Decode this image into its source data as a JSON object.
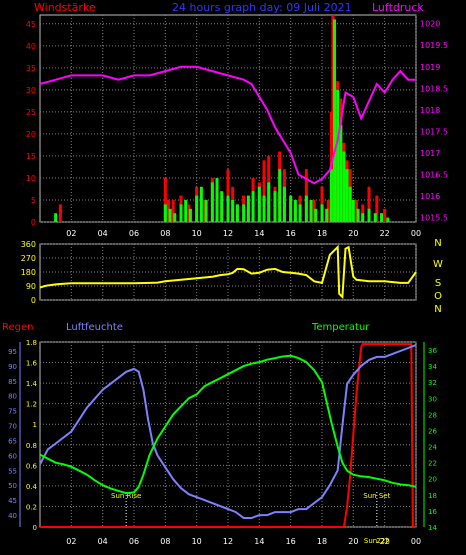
{
  "header": {
    "left_label": "Windstärke",
    "center_title": "24 hours graph day: 09 Juli 2021",
    "right_label": "Luftdruck"
  },
  "colors": {
    "background": "#000000",
    "grid": "#808080",
    "wind_gust": "#ff0000",
    "wind_avg": "#00ff00",
    "pressure": "#ff00ff",
    "direction": "#ffff00",
    "rain": "#ff0000",
    "humidity": "#8080ff",
    "temperature": "#00ff00",
    "header_blue": "#3333ff",
    "left_axis": "#ff0000",
    "right_axis": "#ff00ff",
    "bottom_left_axis": "#ffff00",
    "humidity_axis": "#8080ff",
    "temp_axis": "#00ff00",
    "time_axis": "#ffffff"
  },
  "chart_data": [
    {
      "type": "bar",
      "id": "wind_pressure",
      "title": "24 hours graph day: 09 Juli 2021",
      "ylabel": "Windstärke",
      "y2label": "Luftdruck",
      "xlim": [
        0,
        24
      ],
      "ylim": [
        0,
        47
      ],
      "y2lim": [
        1015.4,
        1020.2
      ],
      "x_ticks": [
        "02",
        "04",
        "06",
        "08",
        "10",
        "12",
        "14",
        "16",
        "18",
        "20",
        "22",
        "00"
      ],
      "y_ticks": [
        "0",
        "5",
        "10",
        "15",
        "20",
        "25",
        "30",
        "35",
        "40",
        "45"
      ],
      "y2_ticks": [
        "1015.5",
        "1016",
        "1016.5",
        "1017",
        "1017.5",
        "1018",
        "1018.5",
        "1019",
        "1019.5",
        "1020"
      ],
      "grid": true,
      "series": [
        {
          "name": "Windstärke",
          "kind": "bar",
          "color": "#ff0000",
          "x": [
            1.3,
            8.0,
            8.2,
            8.5,
            9.0,
            9.5,
            10.0,
            10.5,
            11.0,
            11.3,
            11.6,
            12.0,
            12.3,
            12.6,
            13.0,
            13.3,
            13.6,
            14.0,
            14.3,
            14.6,
            15.0,
            15.3,
            15.6,
            16.0,
            16.3,
            16.6,
            17.0,
            17.5,
            18.0,
            18.4,
            18.6,
            18.7,
            18.8,
            18.9,
            19.0,
            19.2,
            19.4,
            19.6,
            19.8,
            20.2,
            20.6,
            21.0,
            21.5,
            22.0
          ],
          "values": [
            4,
            10,
            5,
            5,
            6,
            4,
            8,
            5,
            10,
            7,
            5,
            12,
            8,
            4,
            6,
            5,
            10,
            9,
            14,
            15,
            8,
            16,
            12,
            5,
            4,
            6,
            12,
            5,
            8,
            5,
            25,
            47,
            38,
            20,
            32,
            28,
            18,
            14,
            12,
            5,
            4,
            8,
            6,
            3
          ]
        },
        {
          "name": "Wind Mittel",
          "kind": "bar",
          "color": "#00ff00",
          "x": [
            1.0,
            8.0,
            8.3,
            8.6,
            9.0,
            9.3,
            9.6,
            10.0,
            10.3,
            10.6,
            11.0,
            11.3,
            11.6,
            12.0,
            12.3,
            12.6,
            13.0,
            13.3,
            13.6,
            14.0,
            14.3,
            14.6,
            15.0,
            15.3,
            15.6,
            16.0,
            16.3,
            16.6,
            17.0,
            17.3,
            17.6,
            18.0,
            18.3,
            18.6,
            18.8,
            19.0,
            19.2,
            19.4,
            19.6,
            19.8,
            20.0,
            20.3,
            20.6,
            21.0,
            21.4,
            21.8,
            22.2
          ],
          "values": [
            2,
            4,
            3,
            2,
            4,
            5,
            3,
            6,
            8,
            5,
            9,
            10,
            7,
            6,
            5,
            4,
            4,
            6,
            7,
            8,
            6,
            9,
            7,
            12,
            8,
            6,
            5,
            4,
            6,
            5,
            3,
            4,
            3,
            12,
            46,
            30,
            22,
            16,
            12,
            8,
            5,
            3,
            2,
            3,
            2,
            2,
            1
          ]
        },
        {
          "name": "Luftdruck",
          "kind": "line",
          "axis": "right",
          "color": "#ff00ff",
          "x": [
            0,
            1,
            2,
            3,
            4,
            5,
            6,
            7,
            8,
            9,
            10,
            11,
            12,
            13,
            13.5,
            14,
            14.5,
            15,
            15.5,
            16,
            16.5,
            17,
            17.5,
            18,
            18.5,
            19,
            19.5,
            20,
            20.5,
            21,
            21.5,
            22,
            22.5,
            23,
            23.5,
            24
          ],
          "values": [
            1018.6,
            1018.7,
            1018.8,
            1018.8,
            1018.8,
            1018.7,
            1018.8,
            1018.8,
            1018.9,
            1019.0,
            1019.0,
            1018.9,
            1018.8,
            1018.7,
            1018.6,
            1018.3,
            1018.0,
            1017.6,
            1017.3,
            1017.0,
            1016.5,
            1016.4,
            1016.3,
            1016.4,
            1016.6,
            1017.3,
            1018.4,
            1018.3,
            1017.8,
            1018.2,
            1018.6,
            1018.4,
            1018.7,
            1018.9,
            1018.7,
            1018.7
          ]
        }
      ]
    },
    {
      "type": "line",
      "id": "wind_direction",
      "xlim": [
        0,
        24
      ],
      "ylim": [
        0,
        360
      ],
      "y_ticks": [
        "0",
        "90",
        "180",
        "270",
        "360"
      ],
      "compass_labels": [
        "N",
        "W",
        "S",
        "O",
        "N"
      ],
      "grid": true,
      "series": [
        {
          "name": "Windrichtung",
          "color": "#ffff00",
          "x": [
            0,
            0.3,
            0.6,
            1,
            1.5,
            2,
            3,
            4,
            5,
            6,
            7,
            7.5,
            8,
            9,
            10,
            11,
            11.5,
            12,
            12.3,
            12.6,
            13,
            13.5,
            14,
            14.5,
            15,
            15.5,
            16,
            16.5,
            17,
            17.5,
            18,
            18.5,
            18.8,
            19,
            19.1,
            19.3,
            19.5,
            19.7,
            20,
            20.2,
            21,
            22,
            23,
            23.5,
            24
          ],
          "values": [
            80,
            90,
            95,
            100,
            105,
            108,
            108,
            108,
            108,
            108,
            110,
            112,
            120,
            130,
            140,
            150,
            160,
            165,
            175,
            200,
            198,
            170,
            175,
            195,
            200,
            180,
            175,
            170,
            160,
            120,
            110,
            290,
            320,
            340,
            40,
            20,
            330,
            340,
            150,
            130,
            120,
            120,
            110,
            110,
            180
          ]
        }
      ]
    },
    {
      "type": "line",
      "id": "rain_humidity_temperature",
      "xlim": [
        0,
        24
      ],
      "x_ticks": [
        "02",
        "04",
        "06",
        "08",
        "10",
        "12",
        "14",
        "16",
        "18",
        "20",
        "22",
        "00"
      ],
      "grid": true,
      "axes": {
        "rain": {
          "label": "Regen",
          "range": [
            0,
            1.8
          ],
          "ticks": [
            "0",
            "0.2",
            "0.4",
            "0.6",
            "0.8",
            "1",
            "1.2",
            "1.4",
            "1.6",
            "1.8"
          ]
        },
        "humidity": {
          "label": "Luftfeuchte",
          "range": [
            36,
            98
          ],
          "ticks": [
            "40",
            "45",
            "50",
            "55",
            "60",
            "65",
            "70",
            "75",
            "80",
            "85",
            "90",
            "95"
          ]
        },
        "temperature": {
          "label": "Temperatur",
          "range": [
            14,
            37
          ],
          "ticks": [
            "14",
            "16",
            "18",
            "20",
            "22",
            "24",
            "26",
            "28",
            "30",
            "32",
            "34",
            "36"
          ]
        }
      },
      "annotations": [
        {
          "label": "Sun Rise",
          "x": 5.5
        },
        {
          "label": "Sun Set",
          "x": 21.5
        },
        {
          "label": "Sun",
          "x": 21.1
        },
        {
          "label": "22h",
          "x": 21.9
        }
      ],
      "series": [
        {
          "name": "Regen",
          "axis": "rain",
          "color": "#ff0000",
          "x": [
            0,
            19.4,
            19.5,
            19.6,
            19.8,
            20.0,
            20.2,
            20.4,
            20.5,
            20.6,
            22.0,
            23.0,
            23.7,
            23.8,
            24
          ],
          "values": [
            0,
            0,
            0.1,
            0.2,
            0.5,
            0.9,
            1.3,
            1.6,
            1.75,
            1.78,
            1.78,
            1.78,
            1.78,
            0,
            0
          ]
        },
        {
          "name": "Luftfeuchte",
          "axis": "humidity",
          "color": "#8080ff",
          "x": [
            0,
            0.5,
            1,
            1.5,
            2,
            2.5,
            3,
            3.5,
            4,
            4.5,
            5,
            5.5,
            6,
            6.3,
            6.6,
            6.9,
            7.2,
            7.5,
            8,
            8.5,
            9,
            9.5,
            10,
            10.5,
            11,
            11.5,
            12,
            12.5,
            13,
            13.5,
            14,
            14.5,
            15,
            15.5,
            16,
            16.5,
            17,
            17.5,
            18,
            18.5,
            19,
            19.3,
            19.6,
            20,
            20.5,
            21,
            21.5,
            22,
            22.5,
            23,
            23.5,
            24
          ],
          "values": [
            57,
            62,
            64,
            66,
            68,
            72,
            76,
            79,
            82,
            84,
            86,
            88,
            89,
            88,
            82,
            72,
            64,
            60,
            56,
            52,
            49,
            47,
            46,
            45,
            44,
            43,
            42,
            41,
            39,
            39,
            40,
            40,
            41,
            41,
            41,
            42,
            42,
            44,
            46,
            50,
            55,
            70,
            84,
            87,
            90,
            92,
            93,
            93,
            94,
            95,
            96,
            97
          ]
        },
        {
          "name": "Temperatur",
          "axis": "temperature",
          "color": "#00ff00",
          "x": [
            0,
            0.5,
            1,
            1.5,
            2,
            2.5,
            3,
            3.5,
            4,
            4.5,
            5,
            5.5,
            6,
            6.3,
            6.6,
            7,
            7.5,
            8,
            8.5,
            9,
            9.5,
            10,
            10.5,
            11,
            11.5,
            12,
            12.5,
            13,
            13.5,
            14,
            14.5,
            15,
            15.5,
            16,
            16.5,
            17,
            17.5,
            18,
            18.3,
            18.6,
            19,
            19.3,
            19.6,
            20,
            20.5,
            21,
            21.5,
            22,
            22.5,
            23,
            23.5,
            24
          ],
          "values": [
            23,
            22.5,
            22,
            21.8,
            21.5,
            21,
            20.5,
            19.8,
            19.2,
            18.8,
            18.5,
            18.2,
            18.3,
            19,
            20.5,
            23,
            25,
            26.5,
            28,
            29,
            30,
            30.5,
            31.5,
            32,
            32.5,
            33,
            33.5,
            34,
            34.3,
            34.5,
            34.8,
            35,
            35.2,
            35.3,
            35,
            34.5,
            33.5,
            32,
            29.5,
            27,
            24,
            22,
            21,
            20.5,
            20.3,
            20.2,
            20,
            19.8,
            19.5,
            19.3,
            19.2,
            19
          ]
        }
      ]
    }
  ]
}
